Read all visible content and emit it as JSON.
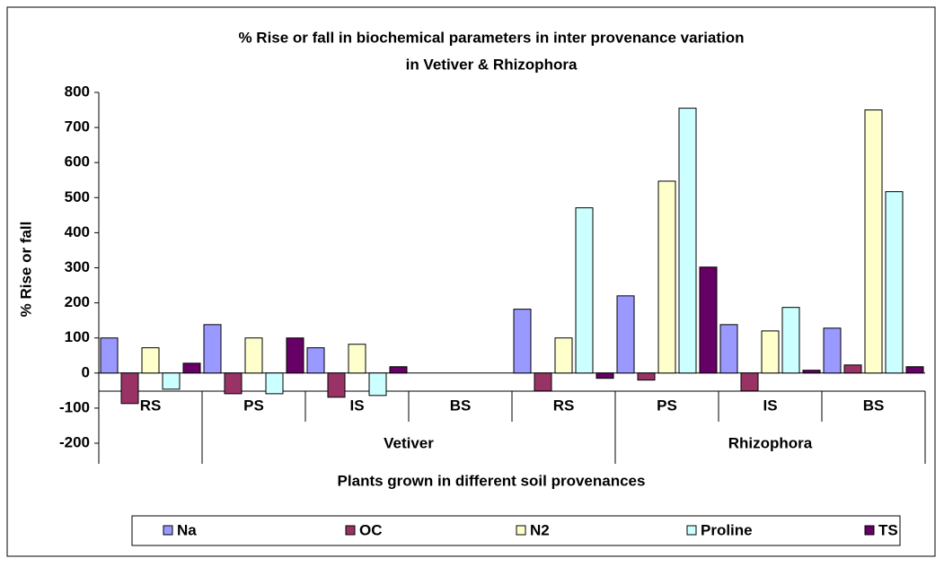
{
  "chart_data": {
    "type": "bar",
    "title": [
      "% Rise or fall in biochemical parameters in inter provenance variation",
      "in Vetiver & Rhizophora"
    ],
    "x_label": "Plants grown in different soil provenances",
    "y_label": "% Rise or fall",
    "categories": [
      "RS",
      "PS",
      "IS",
      "BS",
      "RS",
      "PS",
      "IS",
      "BS"
    ],
    "groups": [
      {
        "label": "Vetiver",
        "start": 1,
        "end": 4
      },
      {
        "label": "Rhizophora",
        "start": 5,
        "end": 7
      }
    ],
    "series": [
      {
        "name": "Na",
        "color": "#9999ff",
        "values": [
          100,
          138,
          72,
          0,
          182,
          220,
          138,
          128
        ]
      },
      {
        "name": "OC",
        "color": "#993366",
        "values": [
          -87,
          -59,
          -69,
          0,
          -51,
          -20,
          -51,
          23
        ]
      },
      {
        "name": "N2",
        "color": "#ffffcc",
        "values": [
          72,
          100,
          82,
          0,
          100,
          547,
          120,
          750
        ]
      },
      {
        "name": "Proline",
        "color": "#ccffff",
        "values": [
          -46,
          -59,
          -64,
          0,
          471,
          755,
          187,
          517
        ]
      },
      {
        "name": "TS",
        "color": "#660066",
        "values": [
          28,
          100,
          18,
          0,
          -15,
          302,
          8,
          18
        ]
      }
    ],
    "ylim": [
      -200,
      800
    ],
    "yticks": [
      -200,
      -100,
      0,
      100,
      200,
      300,
      400,
      500,
      600,
      700,
      800
    ],
    "grid": false,
    "legend": "bottom"
  }
}
